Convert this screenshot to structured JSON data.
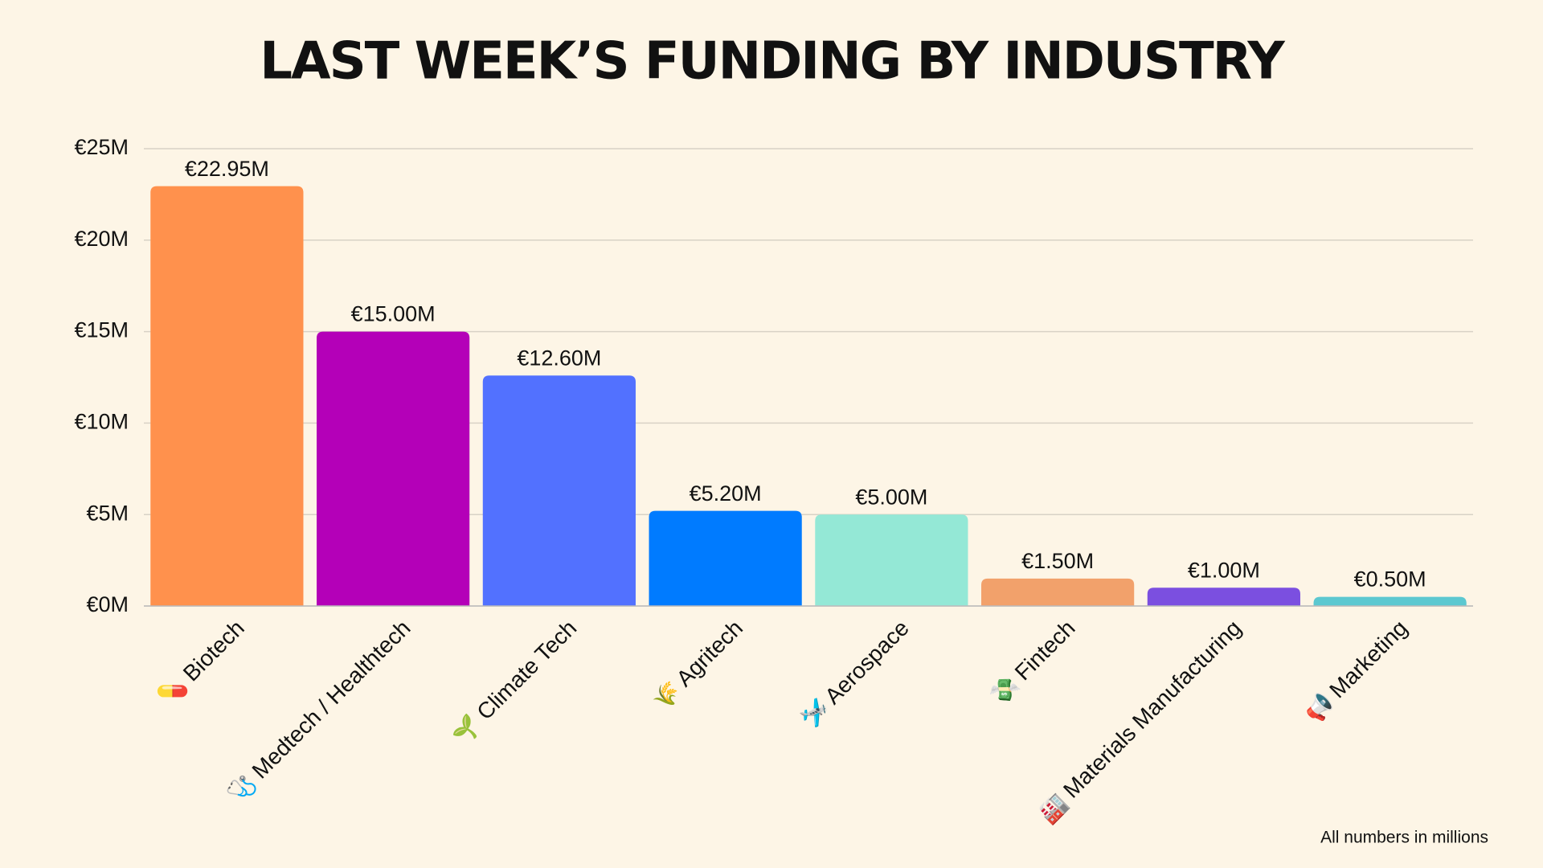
{
  "chart_data": {
    "type": "bar",
    "title": "LAST WEEK’S FUNDING BY INDUSTRY",
    "categories": [
      "💊 Biotech",
      "🩺 Medtech / Healthtech",
      "🌱 Climate Tech",
      "🌾 Agritech",
      "🛩️ Aerospace",
      "💸 Fintech",
      "🏭 Materials Manufacturing",
      "📢 Marketing"
    ],
    "values": [
      22.95,
      15.0,
      12.6,
      5.2,
      5.0,
      1.5,
      1.0,
      0.5
    ],
    "value_labels": [
      "€22.95M",
      "€15.00M",
      "€12.60M",
      "€5.20M",
      "€5.00M",
      "€1.50M",
      "€1.00M",
      "€0.50M"
    ],
    "colors": [
      "#FF914D",
      "#B400B8",
      "#5271FF",
      "#007BFF",
      "#94E8D6",
      "#F2A16B",
      "#7B4FE0",
      "#5CC8D0"
    ],
    "ylim": [
      0,
      25
    ],
    "yticks": [
      {
        "value": 0,
        "label": "€0M"
      },
      {
        "value": 5,
        "label": "€5M"
      },
      {
        "value": 10,
        "label": "€10M"
      },
      {
        "value": 15,
        "label": "€15M"
      },
      {
        "value": 20,
        "label": "€20M"
      },
      {
        "value": 25,
        "label": "€25M"
      }
    ],
    "grid": true,
    "note": "All numbers in millions"
  }
}
